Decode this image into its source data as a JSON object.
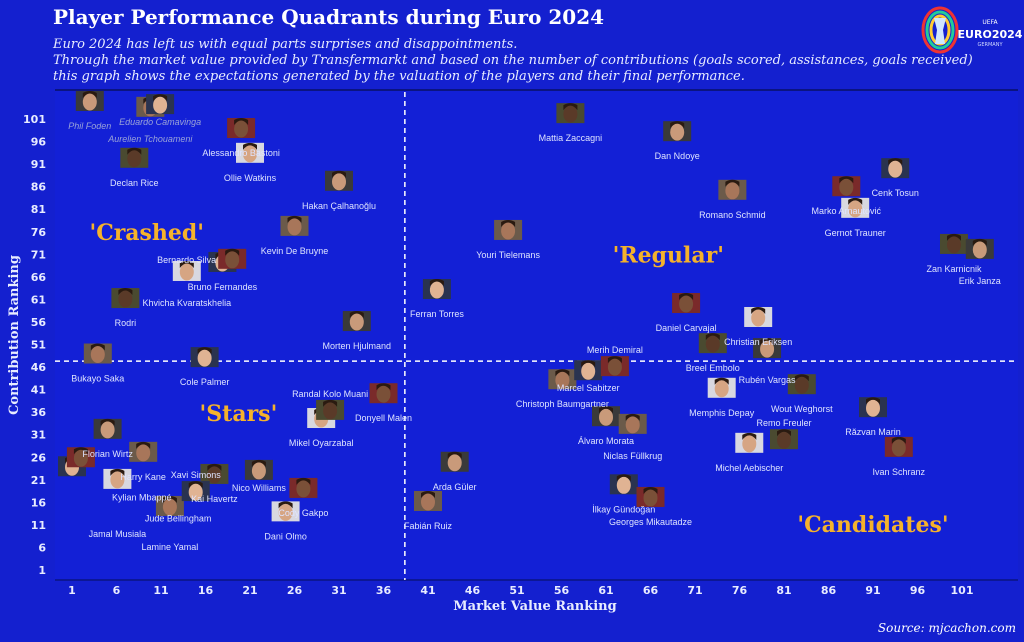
{
  "header": {
    "title": "Player Performance Quadrants during Euro 2024",
    "subtitle_lines": [
      "Euro 2024 has left us with equal parts surprises and disappointments.",
      "Through the market value provided by Transfermarkt and based on the number of contributions (goals scored, assistances, goals received)",
      "this graph shows the expectations generated by the valuation of the players and their final performance."
    ],
    "logo_text": "EURO2024",
    "logo_sub": "GERMANY",
    "logo_top": "UEFA"
  },
  "source": "Source: mjcachon.com",
  "colors": {
    "background": "#1420cf",
    "quadrant_label": "#f5b22b",
    "text": "#e8ecff",
    "divider": "#ffffff"
  },
  "chart_data": {
    "type": "scatter",
    "xlabel": "Market Value Ranking",
    "ylabel": "Contribution Ranking",
    "xlim": [
      -1,
      107
    ],
    "ylim": [
      -1,
      108
    ],
    "x_ticks": [
      1,
      6,
      11,
      16,
      21,
      26,
      31,
      36,
      41,
      46,
      51,
      56,
      61,
      66,
      71,
      76,
      81,
      86,
      91,
      96,
      101
    ],
    "y_ticks": [
      1,
      6,
      11,
      16,
      21,
      26,
      31,
      36,
      41,
      46,
      51,
      56,
      61,
      66,
      71,
      76,
      81,
      86,
      91,
      96,
      101
    ],
    "grid": false,
    "divider_x": 38.4,
    "divider_y": 47.3,
    "quadrants": [
      {
        "label": "'Crashed'",
        "x": 9.4,
        "y": 76
      },
      {
        "label": "'Regular'",
        "x": 68,
        "y": 71
      },
      {
        "label": "'Stars'",
        "x": 19.7,
        "y": 35.8
      },
      {
        "label": "'Candidates'",
        "x": 91,
        "y": 11.2
      }
    ],
    "points": [
      {
        "name": "Phil Foden",
        "x": 3,
        "y": 105,
        "faded": true
      },
      {
        "name": "Aurelien Tchouameni",
        "x": 9.8,
        "y": 103.7,
        "faded": true
      },
      {
        "name": "Eduardo Camavinga",
        "x": 10.9,
        "y": 104.3,
        "faded": true
      },
      {
        "name": "Alessandro Bastoni",
        "x": 20,
        "y": 99
      },
      {
        "name": "Ollie Watkins",
        "x": 21,
        "y": 93.5
      },
      {
        "name": "Declan Rice",
        "x": 8,
        "y": 92.4
      },
      {
        "name": "Hakan Çalhanoğlu",
        "x": 31,
        "y": 87.3
      },
      {
        "name": "Kevin De Bruyne",
        "x": 26,
        "y": 77.3
      },
      {
        "name": "Bruno Fernandes",
        "x": 17.9,
        "y": 69.3
      },
      {
        "name": "Bernardo Silva",
        "x": 19,
        "y": 70
      },
      {
        "name": "Khvicha Kvaratskhelia",
        "x": 13.9,
        "y": 67.3
      },
      {
        "name": "Rodri",
        "x": 7,
        "y": 61.3
      },
      {
        "name": "Morten Hjulmand",
        "x": 33,
        "y": 56.2
      },
      {
        "name": "Bukayo Saka",
        "x": 3.9,
        "y": 49
      },
      {
        "name": "Cole Palmer",
        "x": 15.9,
        "y": 48.2
      },
      {
        "name": "Donyell Malen",
        "x": 36,
        "y": 40.2
      },
      {
        "name": "Mikel Oyarzabal",
        "x": 29,
        "y": 34.7
      },
      {
        "name": "Randal Kolo Muani",
        "x": 30,
        "y": 36.5
      },
      {
        "name": "Florian Wirtz",
        "x": 5,
        "y": 32.3
      },
      {
        "name": "Harry Kane",
        "x": 9,
        "y": 27.2
      },
      {
        "name": "Kylian Mbappé",
        "x": 1,
        "y": 24
      },
      {
        "name": "Jude Bellingham",
        "x": 2,
        "y": 26
      },
      {
        "name": "Jamal Musiala",
        "x": 6.1,
        "y": 21.2
      },
      {
        "name": "Kai Havertz",
        "x": 17,
        "y": 22.3
      },
      {
        "name": "Nico Williams",
        "x": 22,
        "y": 23.2
      },
      {
        "name": "Lamine Yamal",
        "x": 12,
        "y": 15.2
      },
      {
        "name": "Xavi Simons",
        "x": 14.9,
        "y": 18.5
      },
      {
        "name": "Cody Gakpo",
        "x": 27,
        "y": 19.2
      },
      {
        "name": "Dani Olmo",
        "x": 25,
        "y": 14
      },
      {
        "name": "Mattia Zaccagni",
        "x": 57,
        "y": 102.3
      },
      {
        "name": "Dan Ndoye",
        "x": 69,
        "y": 98.3
      },
      {
        "name": "Romano Schmid",
        "x": 75.2,
        "y": 85.3
      },
      {
        "name": "Cenk Tosun",
        "x": 93.5,
        "y": 90.1
      },
      {
        "name": "Marko Arnautović",
        "x": 88,
        "y": 86.1
      },
      {
        "name": "Gernot Trauner",
        "x": 89,
        "y": 81.3
      },
      {
        "name": "Zan Karnicnik",
        "x": 100.1,
        "y": 73.3
      },
      {
        "name": "Erik Janza",
        "x": 103,
        "y": 72.2
      },
      {
        "name": "Youri Tielemans",
        "x": 50,
        "y": 76.4
      },
      {
        "name": "Ferran Torres",
        "x": 42,
        "y": 63.3
      },
      {
        "name": "Daniel Carvajal",
        "x": 70,
        "y": 60.2
      },
      {
        "name": "Christian Eriksen",
        "x": 78.1,
        "y": 57.1
      },
      {
        "name": "Breel Embolo",
        "x": 73,
        "y": 51.3
      },
      {
        "name": "Rubén Vargas",
        "x": 79.1,
        "y": 50.2
      },
      {
        "name": "Christoph Baumgartner",
        "x": 56.1,
        "y": 43.3
      },
      {
        "name": "Marcel Sabitzer",
        "x": 59,
        "y": 45.3
      },
      {
        "name": "Merih Demiral",
        "x": 62,
        "y": 46.2
      },
      {
        "name": "Memphis Depay",
        "x": 74,
        "y": 41.4
      },
      {
        "name": "Wout Weghorst",
        "x": 83,
        "y": 42.2
      },
      {
        "name": "Álvaro Morata",
        "x": 61,
        "y": 35.1
      },
      {
        "name": "Niclas Füllkrug",
        "x": 64,
        "y": 33.4
      },
      {
        "name": "Răzvan Marin",
        "x": 91,
        "y": 37.1
      },
      {
        "name": "Ivan Schranz",
        "x": 93.9,
        "y": 28.3
      },
      {
        "name": "Michel Aebischer",
        "x": 77.1,
        "y": 29.2
      },
      {
        "name": "Remo Freuler",
        "x": 81,
        "y": 30
      },
      {
        "name": "Arda Güler",
        "x": 44,
        "y": 25
      },
      {
        "name": "Fabián Ruiz",
        "x": 41,
        "y": 16.3
      },
      {
        "name": "İlkay Gündoğan",
        "x": 63,
        "y": 20
      },
      {
        "name": "Georges Mikautadze",
        "x": 66,
        "y": 17.2
      }
    ]
  }
}
